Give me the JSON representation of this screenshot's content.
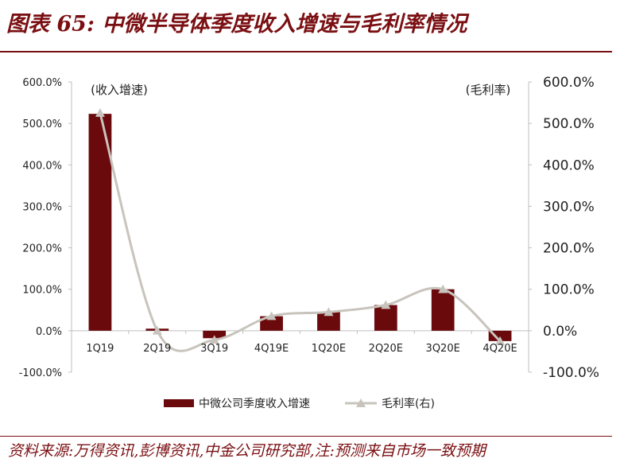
{
  "header": {
    "title": "图表 65:  中微半导体季度收入增速与毛利率情况"
  },
  "footer": {
    "source": "资料来源:万得资讯,彭博资讯,中金公司研究部,注:预测来自市场一致预期"
  },
  "chart_data": {
    "type": "bar",
    "categories": [
      "1Q19",
      "2Q19",
      "3Q19",
      "4Q19E",
      "1Q20E",
      "2Q20E",
      "3Q20E",
      "4Q20E"
    ],
    "series": [
      {
        "name": "中微公司季度收入增速",
        "type": "bar",
        "axis": "left",
        "color": "#6b0a0d",
        "values": [
          523,
          5,
          -18,
          35,
          45,
          62,
          100,
          -25
        ]
      },
      {
        "name": "毛利率(右)",
        "type": "line",
        "axis": "right",
        "color": "#c8c4bd",
        "values": [
          525,
          0,
          -22,
          35,
          45,
          62,
          100,
          -25
        ]
      }
    ],
    "yleft": {
      "label": "(收入增速)",
      "ylim": [
        -100,
        600
      ],
      "ticks": [
        "-100.0%",
        "0.0%",
        "100.0%",
        "200.0%",
        "300.0%",
        "400.0%",
        "500.0%",
        "600.0%"
      ]
    },
    "yright": {
      "label": "(毛利率)",
      "ylim": [
        -100,
        600
      ],
      "ticks": [
        "-100.0%",
        "0.0%",
        "100.0%",
        "200.0%",
        "300.0%",
        "400.0%",
        "500.0%",
        "600.0%"
      ]
    },
    "grid": false,
    "legend": "bottom"
  }
}
